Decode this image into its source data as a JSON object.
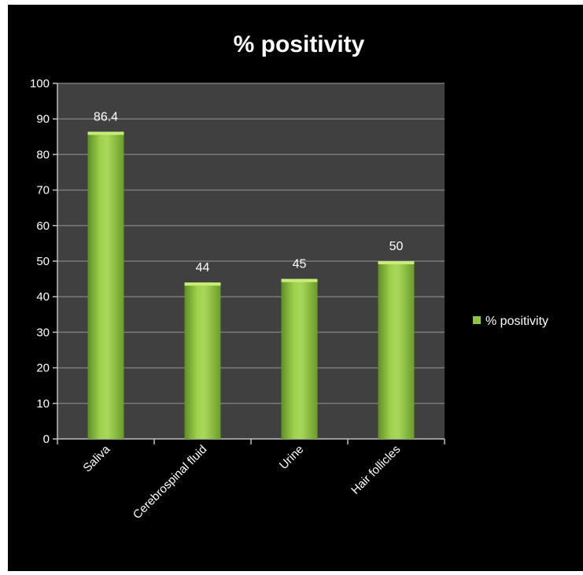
{
  "chart_data": {
    "type": "bar",
    "title": "% positivity",
    "categories": [
      "Saliva",
      "Cerebrospinal fluid",
      "Urine",
      "Hair follicles"
    ],
    "series": [
      {
        "name": "% positivity",
        "values": [
          86.4,
          44,
          45,
          50
        ],
        "value_labels": [
          "86.4",
          "44",
          "45",
          "50"
        ]
      }
    ],
    "xlabel": "",
    "ylabel": "",
    "ylim": [
      0,
      100
    ],
    "yticks": [
      "0",
      "10",
      "20",
      "30",
      "40",
      "50",
      "60",
      "70",
      "80",
      "90",
      "100"
    ],
    "grid": true,
    "legend_position": "right",
    "colors": {
      "background": "#000000",
      "plot_area": "#404040",
      "gridline": "#7a7a7a",
      "bar": "#8cc63f",
      "bar_highlight": "#c6ec7a",
      "bar_shadow": "#5f8f24",
      "text": "#ffffff"
    }
  }
}
